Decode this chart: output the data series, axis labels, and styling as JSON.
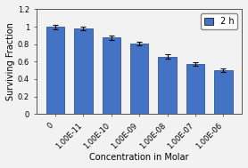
{
  "categories": [
    "0",
    "1.00E-11",
    "1.00E-10",
    "1.00E-09",
    "1.00E-08",
    "1.00E-07",
    "1.00E-06"
  ],
  "values": [
    1.0,
    0.985,
    0.875,
    0.805,
    0.655,
    0.57,
    0.505
  ],
  "errors": [
    0.025,
    0.02,
    0.025,
    0.02,
    0.025,
    0.02,
    0.02
  ],
  "bar_color": "#4472C4",
  "bar_edgecolor": "#2F5597",
  "xlabel": "Concentration in Molar",
  "ylabel": "Surviving Fraction",
  "ylim": [
    0,
    1.2
  ],
  "ytick_vals": [
    0,
    0.2,
    0.4,
    0.6,
    0.8,
    1.0,
    1.2
  ],
  "ytick_labels": [
    "0",
    "0.2",
    "0.4",
    "0.6",
    "0.8",
    "1",
    "1.2"
  ],
  "legend_label": "2 h",
  "legend_color": "#4472C4",
  "background_color": "#f2f2f2",
  "plot_bg_color": "#f2f2f2",
  "axis_fontsize": 7,
  "tick_fontsize": 6,
  "legend_fontsize": 7
}
